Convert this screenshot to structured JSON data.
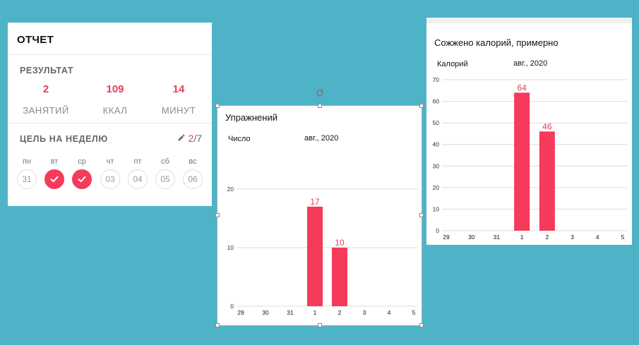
{
  "report": {
    "title": "ОТЧЕТ",
    "result_title": "РЕЗУЛЬТАТ",
    "stats": [
      {
        "value": "2",
        "label": "ЗАНЯТИЙ"
      },
      {
        "value": "109",
        "label": "ККАЛ"
      },
      {
        "value": "14",
        "label": "МИНУТ"
      }
    ],
    "goal_title": "ЦЕЛЬ НА НЕДЕЛЮ",
    "goal_done": "2",
    "goal_sep": "/",
    "goal_total": "7",
    "days": [
      {
        "name": "пн",
        "date": "31",
        "done": false
      },
      {
        "name": "вт",
        "date": "",
        "done": true
      },
      {
        "name": "ср",
        "date": "",
        "done": true
      },
      {
        "name": "чт",
        "date": "03",
        "done": false
      },
      {
        "name": "пт",
        "date": "04",
        "done": false
      },
      {
        "name": "сб",
        "date": "05",
        "done": false
      },
      {
        "name": "вс",
        "date": "06",
        "done": false
      }
    ],
    "accent_color": "#e04159"
  },
  "exercises_chart": {
    "title": "Упражнений",
    "ylabel": "Число",
    "period": "авг., 2020"
  },
  "calories_chart": {
    "title": "Сожжено калорий, примерно",
    "ylabel": "Калорий",
    "period": "авг., 2020"
  },
  "chart_data": [
    {
      "type": "bar",
      "title": "Упражнений",
      "ylabel": "Число",
      "xlabel": "авг., 2020",
      "categories": [
        "29",
        "30",
        "31",
        "1",
        "2",
        "3",
        "4",
        "5"
      ],
      "values": [
        0,
        0,
        0,
        17,
        10,
        0,
        0,
        0
      ],
      "value_labels": [
        "",
        "",
        "",
        "17",
        "10",
        "",
        "",
        ""
      ],
      "yticks": [
        "0",
        "10",
        "20"
      ],
      "ylim": [
        0,
        20
      ],
      "grid": true,
      "bar_color": "#f53a5a"
    },
    {
      "type": "bar",
      "title": "Сожжено калорий, примерно",
      "ylabel": "Калорий",
      "xlabel": "авг., 2020",
      "categories": [
        "29",
        "30",
        "31",
        "1",
        "2",
        "3",
        "4",
        "5"
      ],
      "values": [
        0,
        0,
        0,
        64,
        46,
        0,
        0,
        0
      ],
      "value_labels": [
        "",
        "",
        "",
        "64",
        "46",
        "",
        "",
        ""
      ],
      "yticks": [
        "0",
        "10",
        "20",
        "30",
        "40",
        "50",
        "60",
        "70"
      ],
      "ylim": [
        0,
        70
      ],
      "grid": true,
      "bar_color": "#f53a5a"
    }
  ]
}
